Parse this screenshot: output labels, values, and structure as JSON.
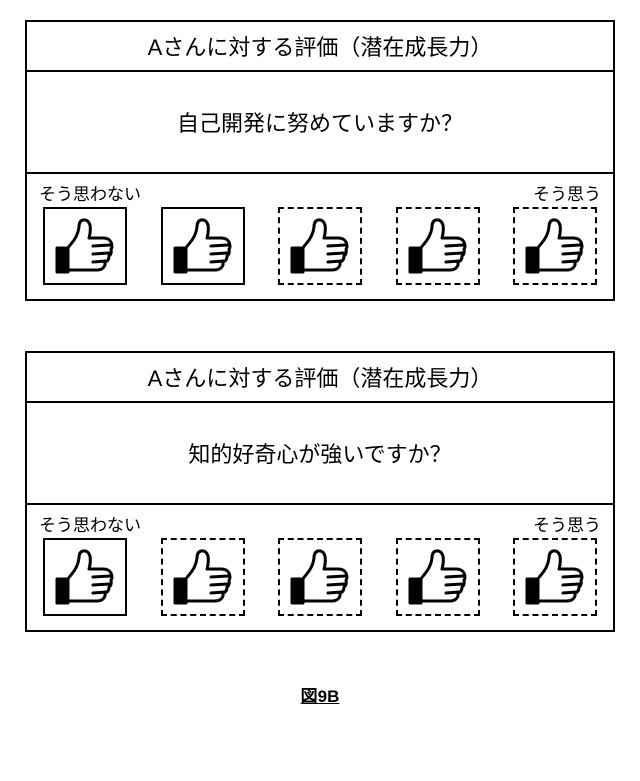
{
  "figure_label": "図9B",
  "panels": [
    {
      "header": "Aさんに対する評価（潜在成長力）",
      "question": "自己開発に努めていますか？",
      "scale_left": "そう思わない",
      "scale_right": "そう思う",
      "thumbs": [
        {
          "selected": true
        },
        {
          "selected": true
        },
        {
          "selected": false
        },
        {
          "selected": false
        },
        {
          "selected": false
        }
      ]
    },
    {
      "header": "Aさんに対する評価（潜在成長力）",
      "question": "知的好奇心が強いですか？",
      "scale_left": "そう思わない",
      "scale_right": "そう思う",
      "thumbs": [
        {
          "selected": true
        },
        {
          "selected": false
        },
        {
          "selected": false
        },
        {
          "selected": false
        },
        {
          "selected": false
        }
      ]
    }
  ],
  "style": {
    "border_color": "#000000",
    "background_color": "#ffffff",
    "header_fontsize": 22,
    "question_fontsize": 22,
    "scale_label_fontsize": 17,
    "thumb_box_width": 84,
    "thumb_box_height": 78,
    "solid_border_width": 2.5,
    "dashed_border_width": 2.5
  }
}
